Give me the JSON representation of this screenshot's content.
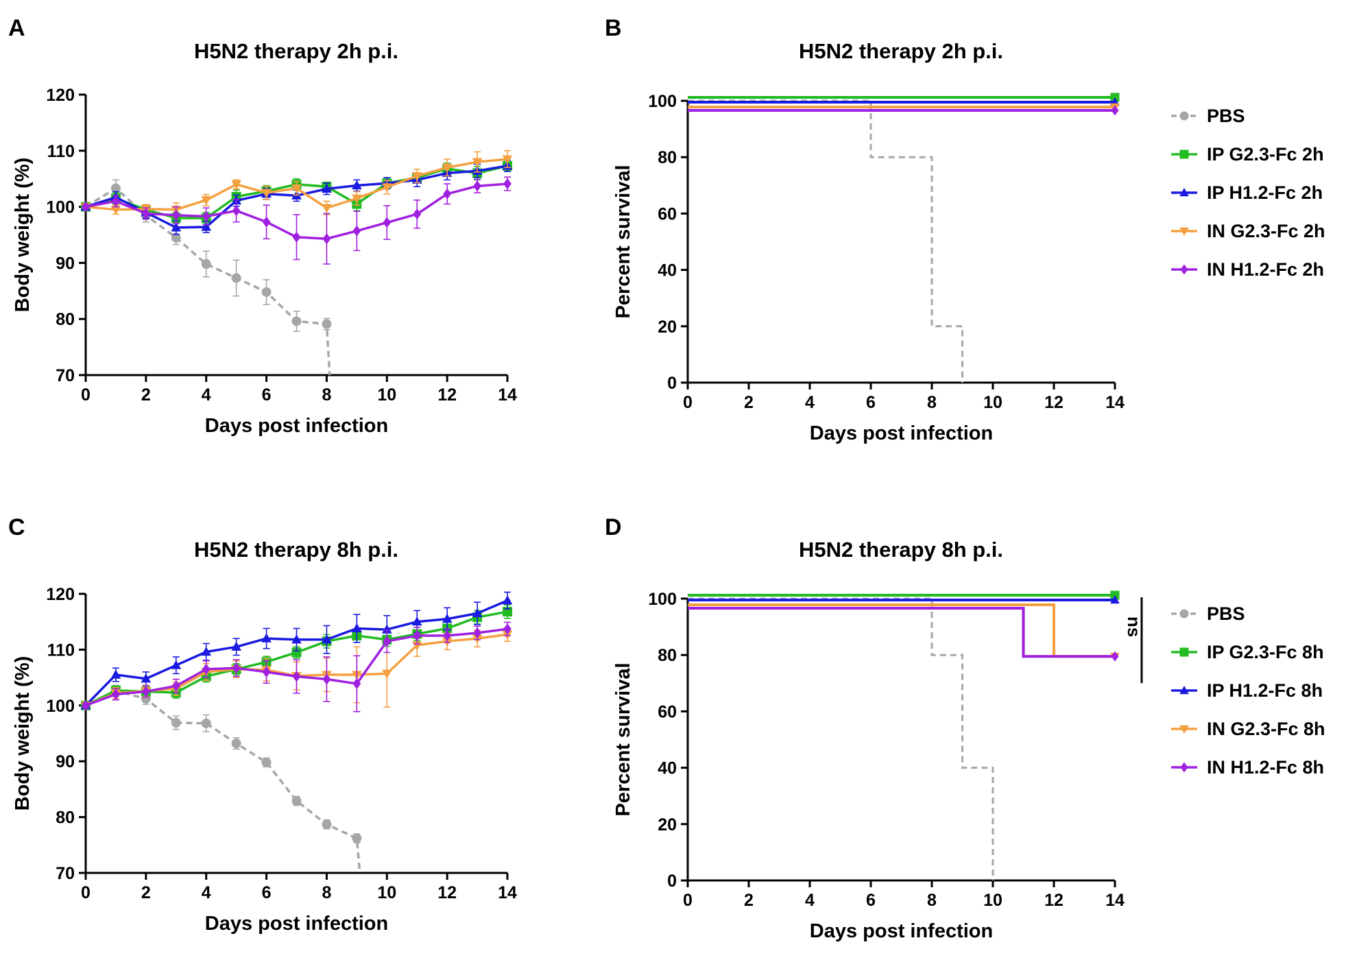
{
  "colors": {
    "pbs": "#a6a6a6",
    "ip_g": "#22bb22",
    "ip_h": "#1a1ae0",
    "in_g": "#f5a040",
    "in_h": "#a020e0",
    "axis": "#000000"
  },
  "chart_data": [
    {
      "panel": "A",
      "type": "line",
      "title": "H5N2 therapy 2h p.i.",
      "xlabel": "Days post infection",
      "ylabel": "Body weight (%)",
      "xlim": [
        0,
        14
      ],
      "ylim": [
        70,
        120
      ],
      "xticks": [
        0,
        2,
        4,
        6,
        8,
        10,
        12,
        14
      ],
      "yticks": [
        70,
        80,
        90,
        100,
        110,
        120
      ],
      "series": [
        {
          "key": "pbs",
          "name": "PBS",
          "marker": "circle",
          "dashed": true,
          "drop_to": 8.1,
          "x": [
            0,
            1,
            2,
            3,
            4,
            5,
            6,
            7,
            8
          ],
          "y": [
            100,
            103.3,
            98.5,
            94.5,
            89.8,
            87.3,
            84.8,
            79.6,
            79.1
          ],
          "err": [
            0.5,
            1.5,
            1.2,
            1.2,
            2.3,
            3.2,
            2.2,
            1.8,
            1.0
          ]
        },
        {
          "key": "ip_g",
          "name": "IP G2.3-Fc 2h",
          "marker": "square",
          "dashed": false,
          "x": [
            0,
            1,
            2,
            3,
            4,
            5,
            6,
            7,
            8,
            9,
            10,
            11,
            12,
            13,
            14
          ],
          "y": [
            100,
            101.5,
            99.5,
            98,
            98,
            101.8,
            102.8,
            104,
            103.6,
            100.5,
            104.2,
            105.2,
            106.8,
            106,
            107.3
          ],
          "err": [
            0.4,
            1.0,
            0.8,
            1.0,
            1.0,
            1.2,
            1.0,
            1.0,
            0.8,
            1.2,
            1.0,
            0.8,
            1.0,
            1.2,
            1.0
          ]
        },
        {
          "key": "ip_h",
          "name": "IP H1.2-Fc 2h",
          "marker": "triangle-up",
          "dashed": false,
          "x": [
            0,
            1,
            2,
            3,
            4,
            5,
            6,
            7,
            8,
            9,
            10,
            11,
            12,
            13,
            14
          ],
          "y": [
            100,
            101.7,
            99,
            96.3,
            96.4,
            101.1,
            102.3,
            102,
            103.2,
            103.8,
            104.2,
            104.8,
            106,
            106.4,
            107.3
          ],
          "err": [
            0.4,
            1.0,
            1.0,
            1.2,
            1.0,
            1.0,
            1.0,
            1.0,
            1.0,
            1.0,
            1.0,
            1.2,
            1.2,
            1.2,
            1.0
          ]
        },
        {
          "key": "in_g",
          "name": "IN G2.3-Fc 2h",
          "marker": "triangle-down",
          "dashed": false,
          "x": [
            0,
            1,
            2,
            3,
            4,
            5,
            6,
            7,
            8,
            9,
            10,
            11,
            12,
            13,
            14
          ],
          "y": [
            100,
            99.5,
            99.6,
            99.5,
            101.2,
            104,
            102.5,
            103.3,
            99.8,
            101.5,
            103.5,
            105.5,
            107,
            108,
            108.5
          ],
          "err": [
            0.4,
            0.8,
            0.8,
            1.2,
            1.0,
            0.8,
            1.2,
            1.2,
            1.2,
            1.2,
            1.2,
            1.2,
            1.5,
            1.8,
            1.5
          ]
        },
        {
          "key": "in_h",
          "name": "IN H1.2-Fc 2h",
          "marker": "diamond",
          "dashed": false,
          "x": [
            0,
            1,
            2,
            3,
            4,
            5,
            6,
            7,
            8,
            9,
            10,
            11,
            12,
            13,
            14
          ],
          "y": [
            100,
            101,
            98.8,
            98.5,
            98.3,
            99.3,
            97.3,
            94.6,
            94.3,
            95.7,
            97.2,
            98.7,
            102.3,
            103.7,
            104.1
          ],
          "err": [
            0.4,
            1.0,
            1.0,
            1.5,
            1.5,
            2.0,
            3.0,
            4.0,
            4.5,
            3.5,
            3.0,
            2.5,
            1.8,
            1.2,
            1.2
          ]
        }
      ]
    },
    {
      "panel": "B",
      "type": "line",
      "step": true,
      "title": "H5N2 therapy 2h p.i.",
      "xlabel": "Days post infection",
      "ylabel": "Percent survival",
      "xlim": [
        0,
        14
      ],
      "ylim": [
        0,
        100
      ],
      "xticks": [
        0,
        2,
        4,
        6,
        8,
        10,
        12,
        14
      ],
      "yticks": [
        0,
        20,
        40,
        60,
        80,
        100
      ],
      "series": [
        {
          "key": "pbs",
          "name": "PBS",
          "marker": "circle",
          "dashed": true,
          "end_marker": false,
          "x": [
            0,
            6,
            8,
            9
          ],
          "y": [
            100,
            80,
            20,
            0
          ]
        },
        {
          "key": "ip_g",
          "name": "IP G2.3-Fc 2h",
          "marker": "square",
          "dashed": false,
          "end_marker": true,
          "x": [
            0,
            14
          ],
          "y": [
            100,
            100
          ]
        },
        {
          "key": "ip_h",
          "name": "IP H1.2-Fc 2h",
          "marker": "triangle-up",
          "dashed": false,
          "end_marker": true,
          "x": [
            0,
            14
          ],
          "y": [
            100,
            100
          ]
        },
        {
          "key": "in_g",
          "name": "IN G2.3-Fc 2h",
          "marker": "triangle-down",
          "dashed": false,
          "end_marker": true,
          "x": [
            0,
            14
          ],
          "y": [
            100,
            100
          ]
        },
        {
          "key": "in_h",
          "name": "IN H1.2-Fc 2h",
          "marker": "diamond",
          "dashed": false,
          "end_marker": true,
          "x": [
            0,
            14
          ],
          "y": [
            100,
            100
          ]
        }
      ]
    },
    {
      "panel": "C",
      "type": "line",
      "title": "H5N2 therapy 8h p.i.",
      "xlabel": "Days post infection",
      "ylabel": "Body weight (%)",
      "xlim": [
        0,
        14
      ],
      "ylim": [
        70,
        120
      ],
      "xticks": [
        0,
        2,
        4,
        6,
        8,
        10,
        12,
        14
      ],
      "yticks": [
        70,
        80,
        90,
        100,
        110,
        120
      ],
      "series": [
        {
          "key": "pbs",
          "name": "PBS",
          "marker": "circle",
          "dashed": true,
          "drop_to": 9.1,
          "x": [
            0,
            1,
            2,
            3,
            4,
            5,
            6,
            7,
            8,
            9
          ],
          "y": [
            100,
            102.6,
            101.2,
            96.9,
            96.8,
            93.2,
            89.8,
            82.9,
            78.7,
            76.2
          ],
          "err": [
            0.5,
            1.0,
            1.0,
            1.2,
            1.5,
            1.0,
            0.8,
            0.8,
            0.8,
            0.8
          ]
        },
        {
          "key": "ip_g",
          "name": "IP G2.3-Fc 8h",
          "marker": "square",
          "dashed": false,
          "x": [
            0,
            1,
            2,
            3,
            4,
            5,
            6,
            7,
            8,
            9,
            10,
            11,
            12,
            13,
            14
          ],
          "y": [
            100,
            102.7,
            102.5,
            102.3,
            105.2,
            106.5,
            107.8,
            109.5,
            111.5,
            112.5,
            111.8,
            112.8,
            113.8,
            115.8,
            116.8
          ],
          "err": [
            0.4,
            0.8,
            0.8,
            1.0,
            1.0,
            1.0,
            1.0,
            1.0,
            1.2,
            1.2,
            1.2,
            1.2,
            1.2,
            1.2,
            1.2
          ]
        },
        {
          "key": "ip_h",
          "name": "IP H1.2-Fc 8h",
          "marker": "triangle-up",
          "dashed": false,
          "x": [
            0,
            1,
            2,
            3,
            4,
            5,
            6,
            7,
            8,
            9,
            10,
            11,
            12,
            13,
            14
          ],
          "y": [
            100,
            105.5,
            104.8,
            107.2,
            109.6,
            110.5,
            112,
            111.8,
            111.8,
            113.8,
            113.6,
            115,
            115.5,
            116.5,
            118.8
          ],
          "err": [
            0.4,
            1.2,
            1.2,
            1.5,
            1.5,
            1.5,
            1.8,
            2.0,
            2.5,
            2.5,
            2.5,
            2.0,
            2.0,
            2.0,
            1.5
          ]
        },
        {
          "key": "in_g",
          "name": "IN G2.3-Fc 8h",
          "marker": "triangle-down",
          "dashed": false,
          "x": [
            0,
            1,
            2,
            3,
            4,
            5,
            6,
            7,
            8,
            9,
            10,
            11,
            12,
            13,
            14
          ],
          "y": [
            100,
            102.2,
            102.6,
            103,
            106,
            106.5,
            106.4,
            105.3,
            105.5,
            105.5,
            105.7,
            110.8,
            111.5,
            112,
            112.7
          ],
          "err": [
            0.4,
            1.0,
            1.0,
            1.2,
            1.5,
            1.5,
            2.0,
            2.5,
            3.0,
            5.0,
            6.0,
            2.0,
            1.5,
            1.5,
            1.2
          ]
        },
        {
          "key": "in_h",
          "name": "IN H1.2-Fc 8h",
          "marker": "diamond",
          "dashed": false,
          "x": [
            0,
            1,
            2,
            3,
            4,
            5,
            6,
            7,
            8,
            9,
            10,
            11,
            12,
            13,
            14
          ],
          "y": [
            100,
            102,
            102.5,
            103.5,
            106.5,
            106.7,
            106,
            105.2,
            104.7,
            103.9,
            111.5,
            112.5,
            112.5,
            113,
            113.7
          ],
          "err": [
            0.4,
            1.0,
            1.0,
            1.2,
            1.5,
            1.5,
            2.0,
            3.0,
            4.0,
            5.0,
            2.0,
            1.5,
            1.2,
            1.2,
            1.2
          ]
        }
      ]
    },
    {
      "panel": "D",
      "type": "line",
      "step": true,
      "title": "H5N2 therapy 8h p.i.",
      "xlabel": "Days post infection",
      "ylabel": "Percent survival",
      "xlim": [
        0,
        14
      ],
      "ylim": [
        0,
        100
      ],
      "xticks": [
        0,
        2,
        4,
        6,
        8,
        10,
        12,
        14
      ],
      "yticks": [
        0,
        20,
        40,
        60,
        80,
        100
      ],
      "annotation": "ns",
      "series": [
        {
          "key": "pbs",
          "name": "PBS",
          "marker": "circle",
          "dashed": true,
          "end_marker": false,
          "x": [
            0,
            8,
            9,
            10
          ],
          "y": [
            100,
            80,
            40,
            0
          ]
        },
        {
          "key": "ip_g",
          "name": "IP G2.3-Fc 8h",
          "marker": "square",
          "dashed": false,
          "end_marker": true,
          "x": [
            0,
            14
          ],
          "y": [
            100,
            100
          ]
        },
        {
          "key": "ip_h",
          "name": "IP H1.2-Fc 8h",
          "marker": "triangle-up",
          "dashed": false,
          "end_marker": true,
          "x": [
            0,
            14
          ],
          "y": [
            100,
            100
          ]
        },
        {
          "key": "in_g",
          "name": "IN G2.3-Fc 8h",
          "marker": "triangle-down",
          "dashed": false,
          "end_marker": true,
          "x": [
            0,
            12,
            14
          ],
          "y": [
            100,
            80,
            80
          ]
        },
        {
          "key": "in_h",
          "name": "IN H1.2-Fc 8h",
          "marker": "diamond",
          "dashed": false,
          "end_marker": true,
          "x": [
            0,
            11,
            14
          ],
          "y": [
            100,
            80,
            80
          ]
        }
      ]
    }
  ]
}
